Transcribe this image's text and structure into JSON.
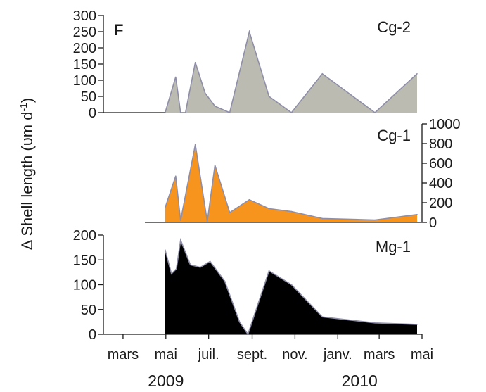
{
  "figure": {
    "panel_letter": "F",
    "ylabel_main": "Δ Shell length (",
    "ylabel_unit": "υm d",
    "ylabel_sup": "-1",
    "ylabel_close": ")",
    "years": [
      {
        "label": "2009",
        "date": "2009-05-01"
      },
      {
        "label": "2010",
        "date": "2010-02-01"
      }
    ]
  },
  "chart_data": [
    {
      "type": "area",
      "name": "Cg-2",
      "color": "#bbbbb1",
      "line_color": "#8e8ea8",
      "y_axis_side": "left",
      "ylim": [
        0,
        300
      ],
      "yticks": [
        0,
        50,
        100,
        150,
        200,
        250,
        300
      ],
      "x": [
        "2009-04-30",
        "2009-05-15",
        "2009-05-22",
        "2009-05-29",
        "2009-06-12",
        "2009-06-26",
        "2009-07-10",
        "2009-07-31",
        "2009-08-28",
        "2009-09-25",
        "2009-10-27",
        "2009-12-10",
        "2010-02-23",
        "2010-04-24"
      ],
      "values": [
        0,
        110,
        0,
        0,
        155,
        60,
        20,
        0,
        250,
        50,
        0,
        120,
        0,
        120
      ]
    },
    {
      "type": "area",
      "name": "Cg-1",
      "color": "#f7941d",
      "line_color": "#8e8ea8",
      "y_axis_side": "right",
      "ylim": [
        0,
        1000
      ],
      "yticks": [
        0,
        200,
        400,
        600,
        800,
        1000
      ],
      "x": [
        "2009-04-30",
        "2009-05-15",
        "2009-05-22",
        "2009-06-12",
        "2009-06-29",
        "2009-07-10",
        "2009-07-31",
        "2009-08-28",
        "2009-09-25",
        "2009-10-27",
        "2009-12-10",
        "2010-02-23",
        "2010-04-24"
      ],
      "values": [
        150,
        470,
        20,
        790,
        10,
        580,
        100,
        230,
        140,
        110,
        40,
        25,
        80
      ]
    },
    {
      "type": "area",
      "name": "Mg-1",
      "color": "#000000",
      "line_color": "#8e8ea8",
      "y_axis_side": "left",
      "ylim": [
        0,
        200
      ],
      "yticks": [
        0,
        50,
        100,
        150,
        200
      ],
      "x": [
        "2009-04-30",
        "2009-05-09",
        "2009-05-16",
        "2009-05-22",
        "2009-06-05",
        "2009-06-19",
        "2009-07-03",
        "2009-07-24",
        "2009-08-14",
        "2009-08-26",
        "2009-09-25",
        "2009-10-27",
        "2009-12-10",
        "2010-02-23",
        "2010-04-24"
      ],
      "values": [
        170,
        122,
        132,
        190,
        140,
        135,
        147,
        107,
        25,
        0,
        128,
        100,
        35,
        23,
        20
      ]
    }
  ],
  "x_axis": {
    "ticks": [
      {
        "label": "mars",
        "date": "2009-03-01"
      },
      {
        "label": "mai",
        "date": "2009-05-01"
      },
      {
        "label": "juil.",
        "date": "2009-07-01"
      },
      {
        "label": "sept.",
        "date": "2009-09-01"
      },
      {
        "label": "nov.",
        "date": "2009-11-01"
      },
      {
        "label": "janv.",
        "date": "2010-01-01"
      },
      {
        "label": "mars",
        "date": "2010-03-01"
      },
      {
        "label": "mai",
        "date": "2010-05-01"
      }
    ],
    "range": [
      "2009-02-01",
      "2010-05-01"
    ]
  }
}
